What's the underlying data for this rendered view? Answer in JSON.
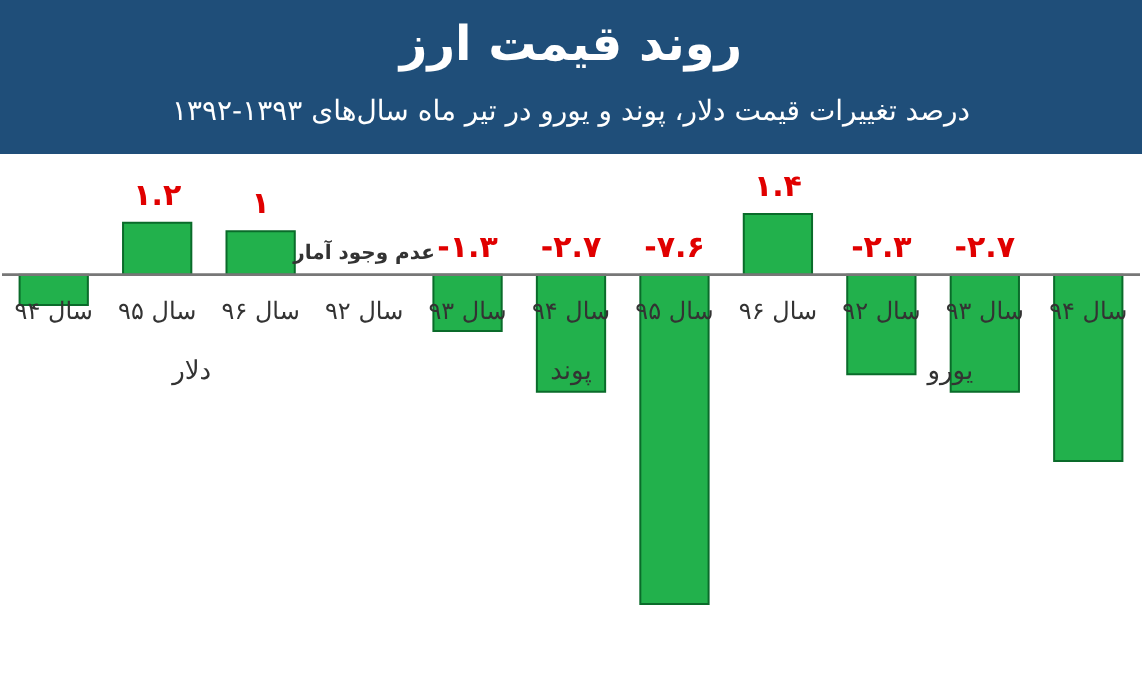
{
  "chart_data": {
    "type": "bar",
    "title": "روند قیمت ارز",
    "subtitle": "درصد تغییرات قیمت دلار، پوند و یورو در تیر ماه سال‌های ۱۳۹۳-۱۳۹۲",
    "categories": [
      "سال ۹۴",
      "سال ۹۵",
      "سال ۹۶",
      "سال ۹۲",
      "سال ۹۳",
      "سال ۹۴",
      "سال ۹۵",
      "سال ۹۶",
      "سال ۹۲",
      "سال ۹۳",
      "سال ۹۴"
    ],
    "values": [
      -0.7,
      1.2,
      1,
      null,
      -1.3,
      -2.7,
      -7.6,
      1.4,
      -2.3,
      -2.7,
      -4.3
    ],
    "value_labels": [
      null,
      "۱.۲",
      "۱",
      "عدم وجود آمار",
      "-۱.۳",
      "-۲.۷",
      "-۷.۶",
      "۱.۴",
      "-۲.۳",
      "-۲.۷",
      null
    ],
    "color": "#22b14c",
    "annotations": [
      "دلار",
      "پوند",
      "یورو"
    ]
  }
}
